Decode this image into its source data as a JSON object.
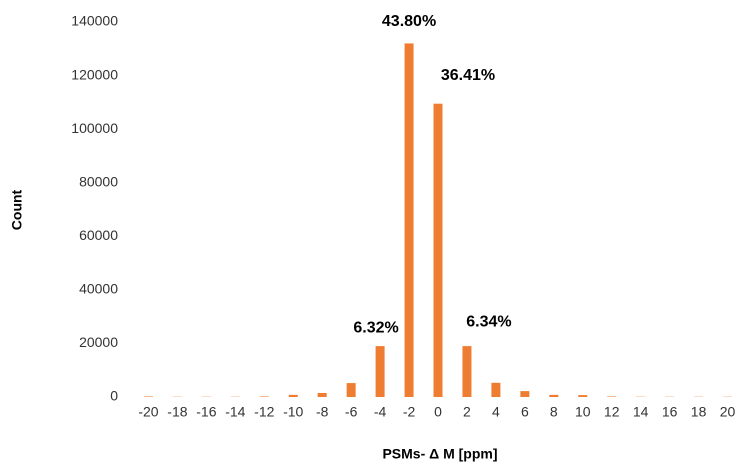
{
  "chart_data": {
    "type": "bar",
    "x_label": "PSMs- Δ M [ppm]",
    "y_label": "Count",
    "categories": [
      "-20",
      "-18",
      "-16",
      "-14",
      "-12",
      "-10",
      "-8",
      "-6",
      "-4",
      "-2",
      "0",
      "2",
      "4",
      "6",
      "8",
      "10",
      "12",
      "14",
      "16",
      "18",
      "20"
    ],
    "values": [
      200,
      100,
      100,
      100,
      200,
      800,
      1500,
      5200,
      19000,
      132000,
      109500,
      19000,
      5300,
      2200,
      800,
      700,
      200,
      100,
      100,
      100,
      100
    ],
    "color": "#ef7d31",
    "ylim": [
      0,
      140000
    ],
    "yticks": [
      0,
      20000,
      40000,
      60000,
      80000,
      100000,
      120000,
      140000
    ],
    "grid": false,
    "annotations": [
      {
        "text": "43.80%",
        "x": "-2"
      },
      {
        "text": "36.41%",
        "x": "0"
      },
      {
        "text": "6.32%",
        "x": "-4"
      },
      {
        "text": "6.34%",
        "x": "2"
      }
    ]
  }
}
